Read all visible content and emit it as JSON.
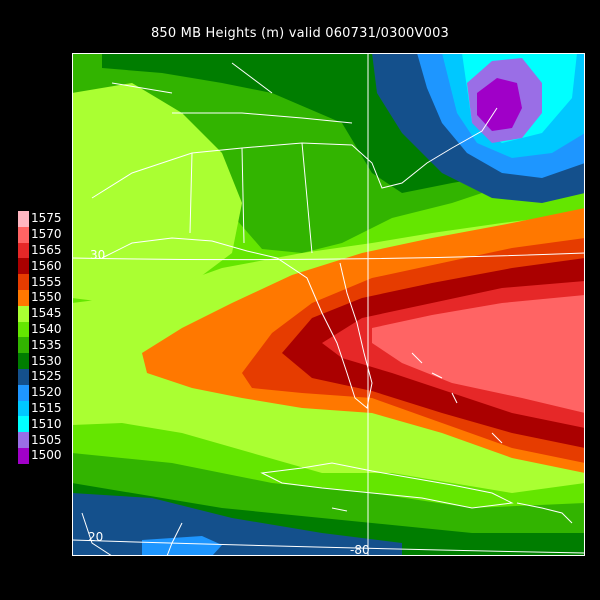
{
  "title": "850 MB Heights (m) valid 060731/0300V003",
  "legend": [
    {
      "value": "1575",
      "color": "#ffb6c1"
    },
    {
      "value": "1570",
      "color": "#ff6464"
    },
    {
      "value": "1565",
      "color": "#e62828"
    },
    {
      "value": "1560",
      "color": "#aa0000"
    },
    {
      "value": "1555",
      "color": "#e63c00"
    },
    {
      "value": "1550",
      "color": "#ff7800"
    },
    {
      "value": "1545",
      "color": "#aaff32"
    },
    {
      "value": "1540",
      "color": "#64e600"
    },
    {
      "value": "1535",
      "color": "#32b400"
    },
    {
      "value": "1530",
      "color": "#007d00"
    },
    {
      "value": "1525",
      "color": "#14508c"
    },
    {
      "value": "1520",
      "color": "#1e96ff"
    },
    {
      "value": "1515",
      "color": "#00c8ff"
    },
    {
      "value": "1510",
      "color": "#00ffff"
    },
    {
      "value": "1505",
      "color": "#9a6ee6"
    },
    {
      "value": "1500",
      "color": "#a000c8"
    }
  ],
  "map": {
    "lat_labels": [
      "30",
      "20"
    ],
    "lon_labels": [
      "-80"
    ]
  }
}
